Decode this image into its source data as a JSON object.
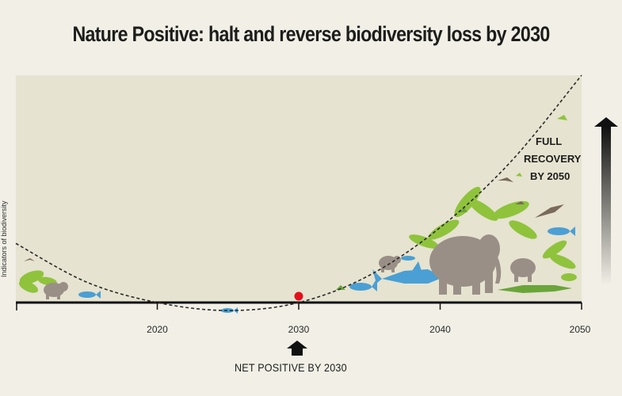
{
  "chart_data": {
    "type": "line",
    "title": "Nature Positive: halt and reverse biodiversity loss by 2030",
    "xlabel": "",
    "ylabel": "Indicators of biodiversity",
    "x_ticks": [
      2020,
      2030,
      2040,
      2050
    ],
    "xlim": [
      2010,
      2050
    ],
    "series": [
      {
        "x": [
          2010,
          2015,
          2020,
          2025,
          2030,
          2035,
          2040,
          2045,
          2050
        ],
        "values": [
          0.26,
          0.09,
          0.0,
          -0.035,
          0.0,
          0.12,
          0.33,
          0.62,
          1.0
        ]
      }
    ],
    "highlight_point": {
      "x": 2030,
      "y": 0.0,
      "color": "#e3101b"
    },
    "annotations": {
      "full_recovery": [
        "FULL",
        "RECOVERY",
        "BY 2050"
      ],
      "net_positive": "NET POSITIVE BY 2030"
    },
    "colors": {
      "plot_background": "#e6e3d0",
      "page_background": "#f1efe6",
      "curve": "#2a2a2a",
      "axis": "#111111",
      "elephant": "#9a8f86",
      "shark": "#4a9fd4",
      "foliage": "#8fc33c",
      "crocodile": "#6aa53a"
    },
    "icons": [
      "up-arrow-icon",
      "elephant-icon",
      "shark-icon",
      "fish-icon",
      "crocodile-icon",
      "palm-icon",
      "bird-icon",
      "gradient-arrow-icon"
    ]
  }
}
